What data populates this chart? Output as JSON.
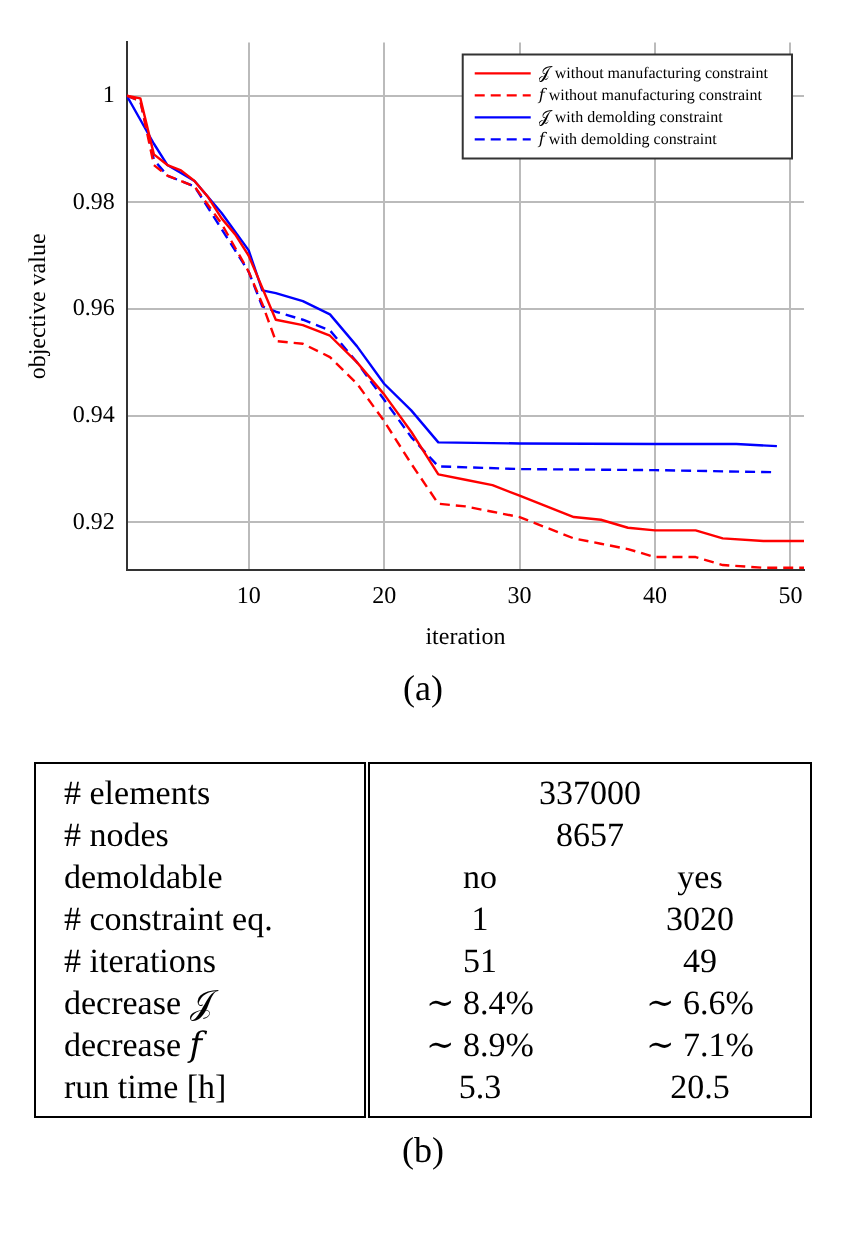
{
  "chart_data": [
    {
      "type": "line",
      "xlabel": "iteration",
      "ylabel": "objective value",
      "xlim": [
        1,
        51
      ],
      "xticks": [
        10,
        20,
        30,
        40,
        50
      ],
      "ylim": [
        0.911,
        1.01
      ],
      "yticks": [
        0.92,
        0.94,
        0.96,
        0.98,
        1
      ],
      "grid": true,
      "legend": "top right",
      "marker": "none",
      "annotations": [
        "(a)"
      ],
      "series": [
        {
          "name": "𝒥 without manufacturing constraint",
          "color": "#ff0000",
          "line_style": "solid",
          "x": [
            1,
            2,
            3,
            4,
            5,
            6,
            7,
            8,
            9,
            10,
            11,
            12,
            14,
            16,
            18,
            20,
            22,
            24,
            26,
            28,
            30,
            32,
            34,
            36,
            38,
            40,
            43,
            45,
            48,
            51
          ],
          "values": [
            1,
            0.9995,
            0.989,
            0.987,
            0.986,
            0.984,
            0.981,
            0.977,
            0.974,
            0.97,
            0.964,
            0.958,
            0.957,
            0.955,
            0.95,
            0.944,
            0.937,
            0.929,
            0.928,
            0.927,
            0.925,
            0.923,
            0.921,
            0.9205,
            0.919,
            0.9185,
            0.9185,
            0.917,
            0.9165,
            0.9165
          ]
        },
        {
          "name": "𝑓 without manufacturing constraint",
          "color": "#ff0000",
          "line_style": "dashed",
          "x": [
            1,
            2,
            3,
            4,
            6,
            8,
            10,
            11,
            12,
            14,
            16,
            18,
            20,
            22,
            24,
            26,
            28,
            30,
            32,
            34,
            36,
            38,
            40,
            43,
            45,
            48,
            51
          ],
          "values": [
            1,
            0.999,
            0.987,
            0.985,
            0.983,
            0.976,
            0.967,
            0.961,
            0.954,
            0.9535,
            0.951,
            0.946,
            0.939,
            0.931,
            0.9235,
            0.923,
            0.922,
            0.921,
            0.919,
            0.917,
            0.916,
            0.915,
            0.9135,
            0.9135,
            0.912,
            0.9115,
            0.9115
          ]
        },
        {
          "name": "𝒥 with demolding constraint",
          "color": "#0000ff",
          "line_style": "solid",
          "x": [
            1,
            3,
            4,
            6,
            8,
            10,
            11,
            12,
            14,
            16,
            18,
            20,
            22,
            24,
            30,
            40,
            46,
            49
          ],
          "values": [
            1,
            0.991,
            0.987,
            0.984,
            0.978,
            0.971,
            0.9635,
            0.963,
            0.9615,
            0.959,
            0.953,
            0.946,
            0.941,
            0.935,
            0.9348,
            0.9347,
            0.9347,
            0.9343
          ]
        },
        {
          "name": "𝑓 with demolding constraint",
          "color": "#0000ff",
          "line_style": "dashed",
          "x": [
            1,
            2,
            3,
            4,
            6,
            8,
            10,
            11,
            12,
            14,
            16,
            18,
            20,
            22,
            24,
            30,
            40,
            49
          ],
          "values": [
            1,
            0.999,
            0.988,
            0.985,
            0.983,
            0.975,
            0.967,
            0.9605,
            0.9595,
            0.958,
            0.956,
            0.95,
            0.943,
            0.936,
            0.9305,
            0.93,
            0.9298,
            0.9294
          ]
        }
      ]
    },
    {
      "type": "other",
      "categories": [
        "# elements",
        "# nodes",
        "demoldable",
        "# constraint eq.",
        "# iterations",
        "decrease 𝒥",
        "decrease 𝑓",
        "run time [h]"
      ],
      "annotations": [
        "337000",
        "8657",
        "no",
        "yes",
        "1",
        "3020",
        "51",
        "49",
        "∼ 8.4%",
        "∼ 6.6%",
        "∼ 8.9%",
        "∼ 7.1%",
        "5.3",
        "20.5",
        "(b)"
      ]
    }
  ]
}
